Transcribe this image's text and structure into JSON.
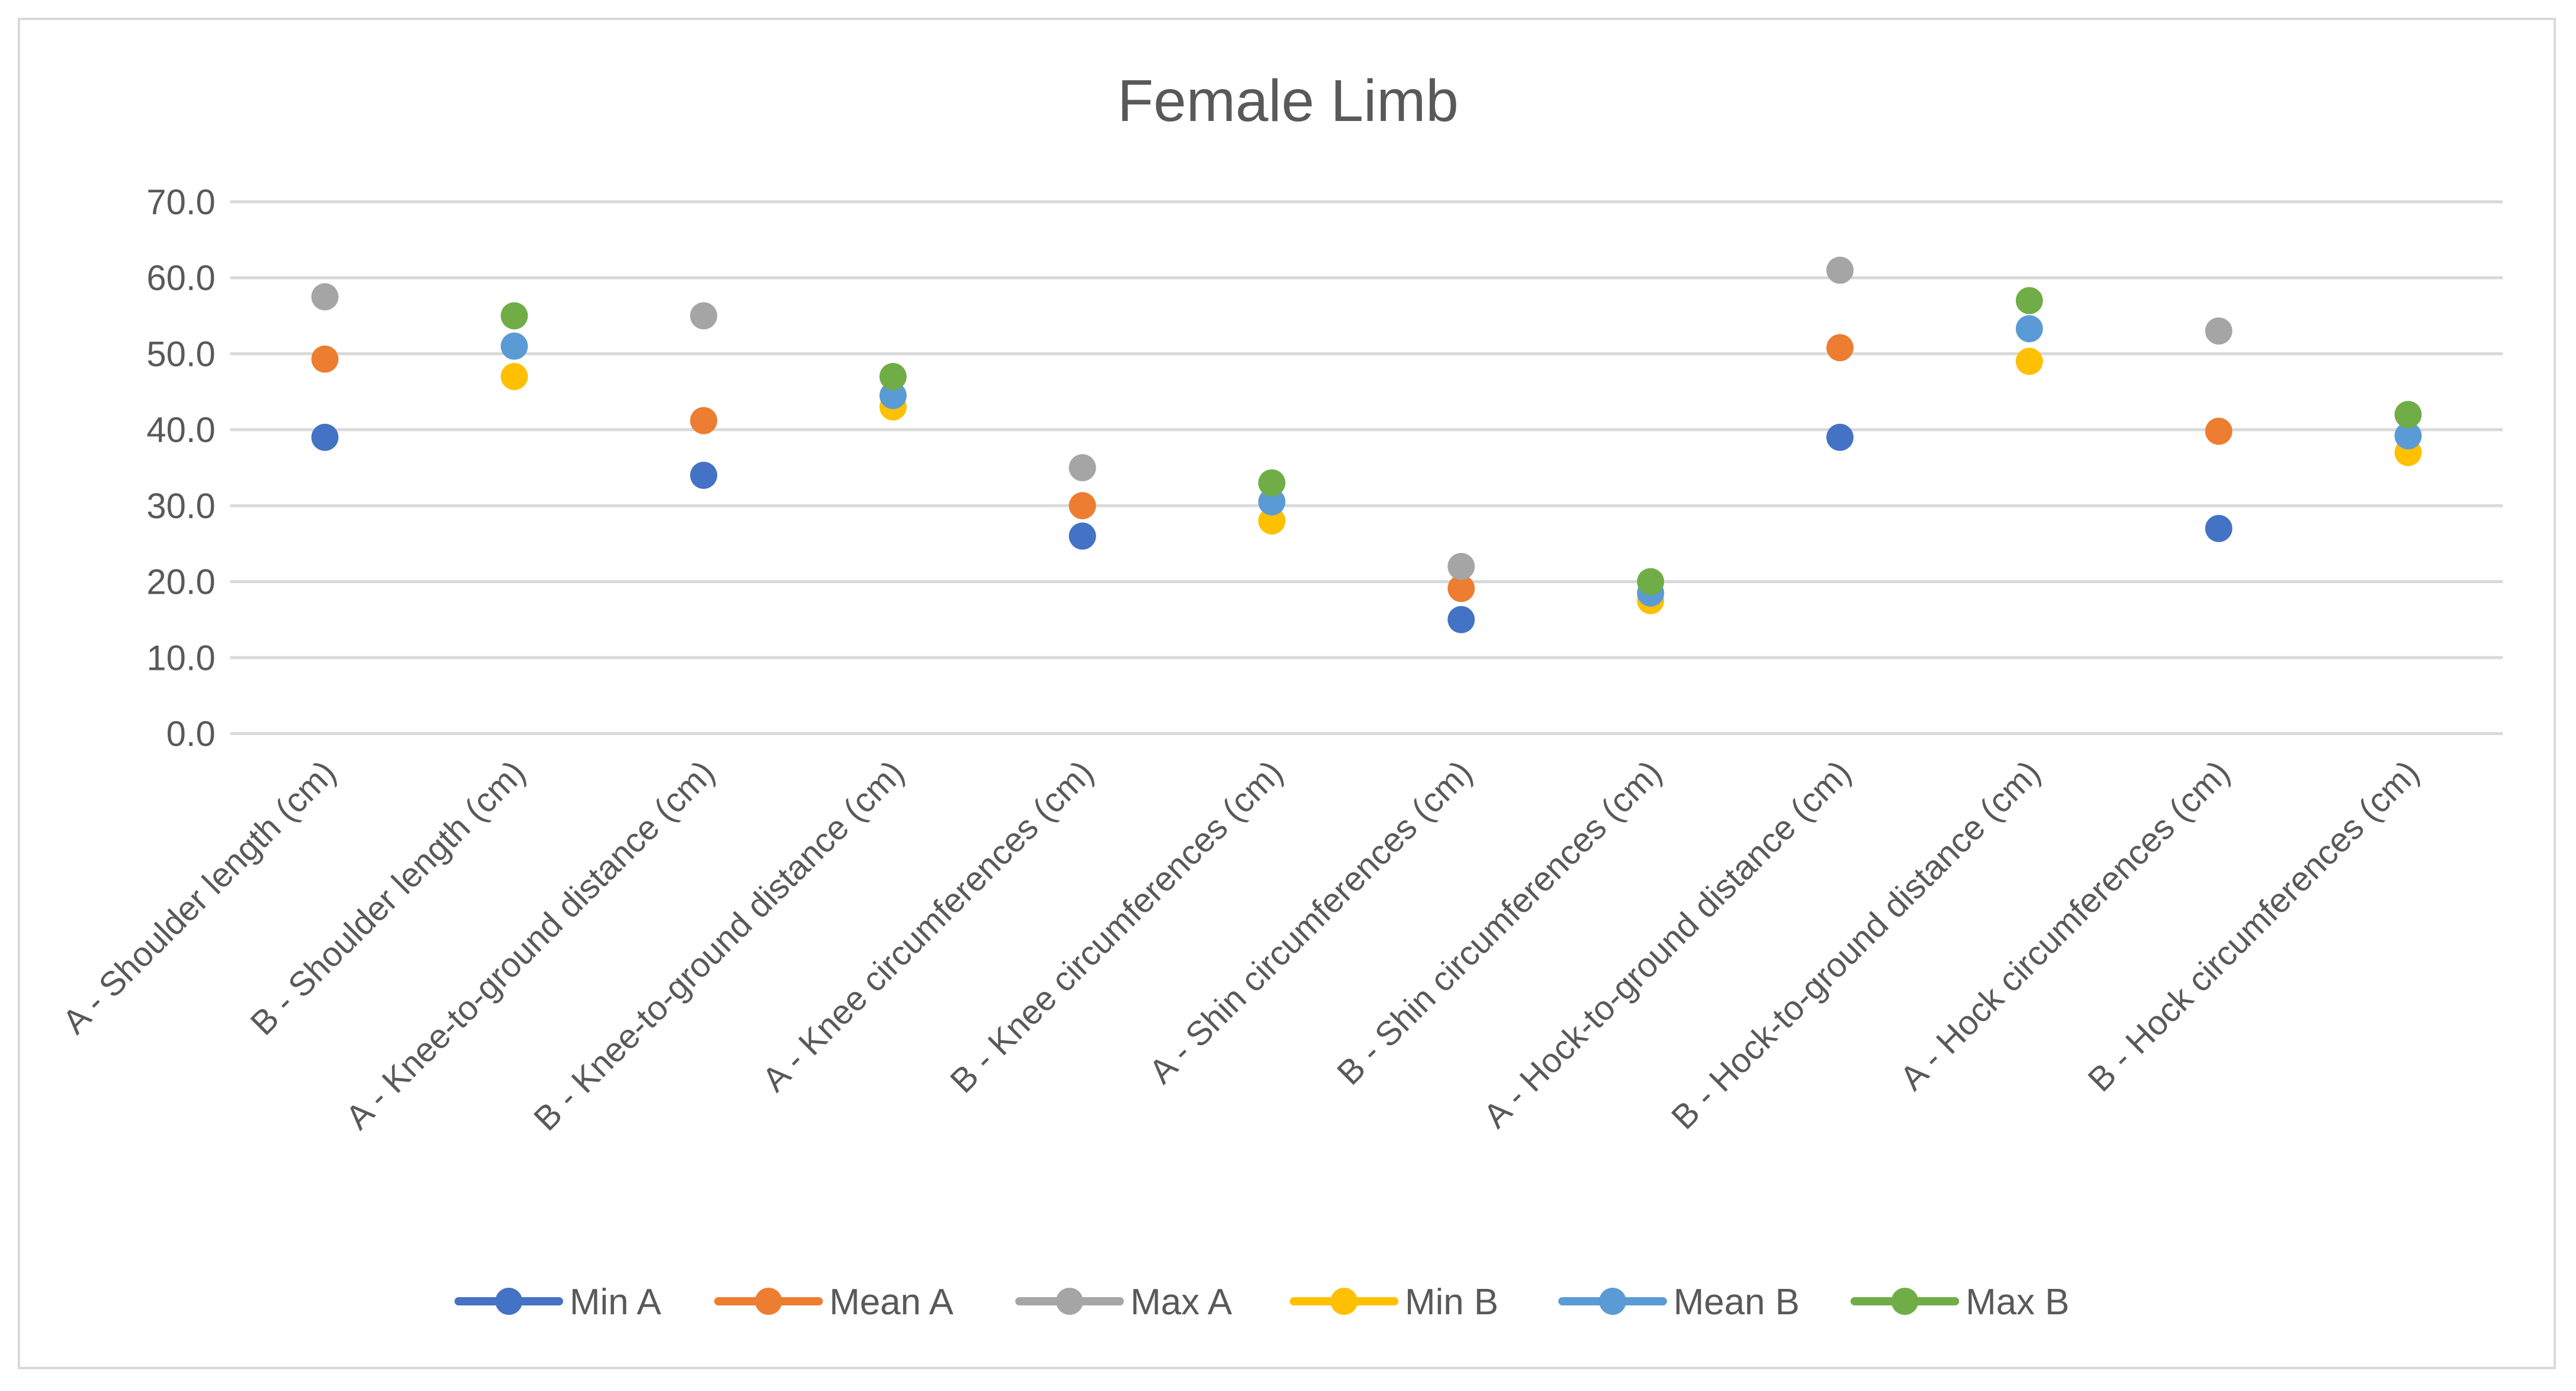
{
  "chart_data": {
    "type": "scatter",
    "title": "Female Limb",
    "xlabel": "",
    "ylabel": "",
    "ylim": [
      0,
      70
    ],
    "ytick_labels": [
      "0.0",
      "10.0",
      "20.0",
      "30.0",
      "40.0",
      "50.0",
      "60.0",
      "70.0"
    ],
    "grid": true,
    "legend_position": "bottom",
    "categories": [
      "A - Shoulder length (cm)",
      "B - Shoulder length (cm)",
      "A - Knee-to-ground distance (cm)",
      "B - Knee-to-ground distance (cm)",
      "A - Knee circumferences (cm)",
      "B - Knee circumferences (cm)",
      "A - Shin circumferences (cm)",
      "B - Shin circumferences (cm)",
      "A - Hock-to-ground distance (cm)",
      "B - Hock-to-ground distance (cm)",
      "A - Hock circumferences (cm)",
      "B - Hock circumferences (cm)"
    ],
    "series": [
      {
        "name": "Min A",
        "color": "#4472c4",
        "values": [
          39,
          null,
          34,
          null,
          26,
          null,
          15,
          null,
          39,
          null,
          27,
          null
        ]
      },
      {
        "name": "Mean A",
        "color": "#ed7d31",
        "values": [
          49.3,
          null,
          41.2,
          null,
          30,
          null,
          19.1,
          null,
          50.8,
          null,
          39.8,
          null
        ]
      },
      {
        "name": "Max A",
        "color": "#a5a5a5",
        "values": [
          57.5,
          null,
          55,
          null,
          35,
          null,
          22,
          null,
          61,
          null,
          53,
          null
        ]
      },
      {
        "name": "Min B",
        "color": "#ffc000",
        "values": [
          null,
          47,
          null,
          43,
          null,
          28,
          null,
          17.5,
          null,
          49,
          null,
          37
        ]
      },
      {
        "name": "Mean B",
        "color": "#5b9bd5",
        "values": [
          null,
          51,
          null,
          44.5,
          null,
          30.5,
          null,
          18.5,
          null,
          53.3,
          null,
          39.2
        ]
      },
      {
        "name": "Max B",
        "color": "#70ad47",
        "values": [
          null,
          55,
          null,
          47,
          null,
          33,
          null,
          20,
          null,
          57,
          null,
          42
        ]
      }
    ]
  }
}
